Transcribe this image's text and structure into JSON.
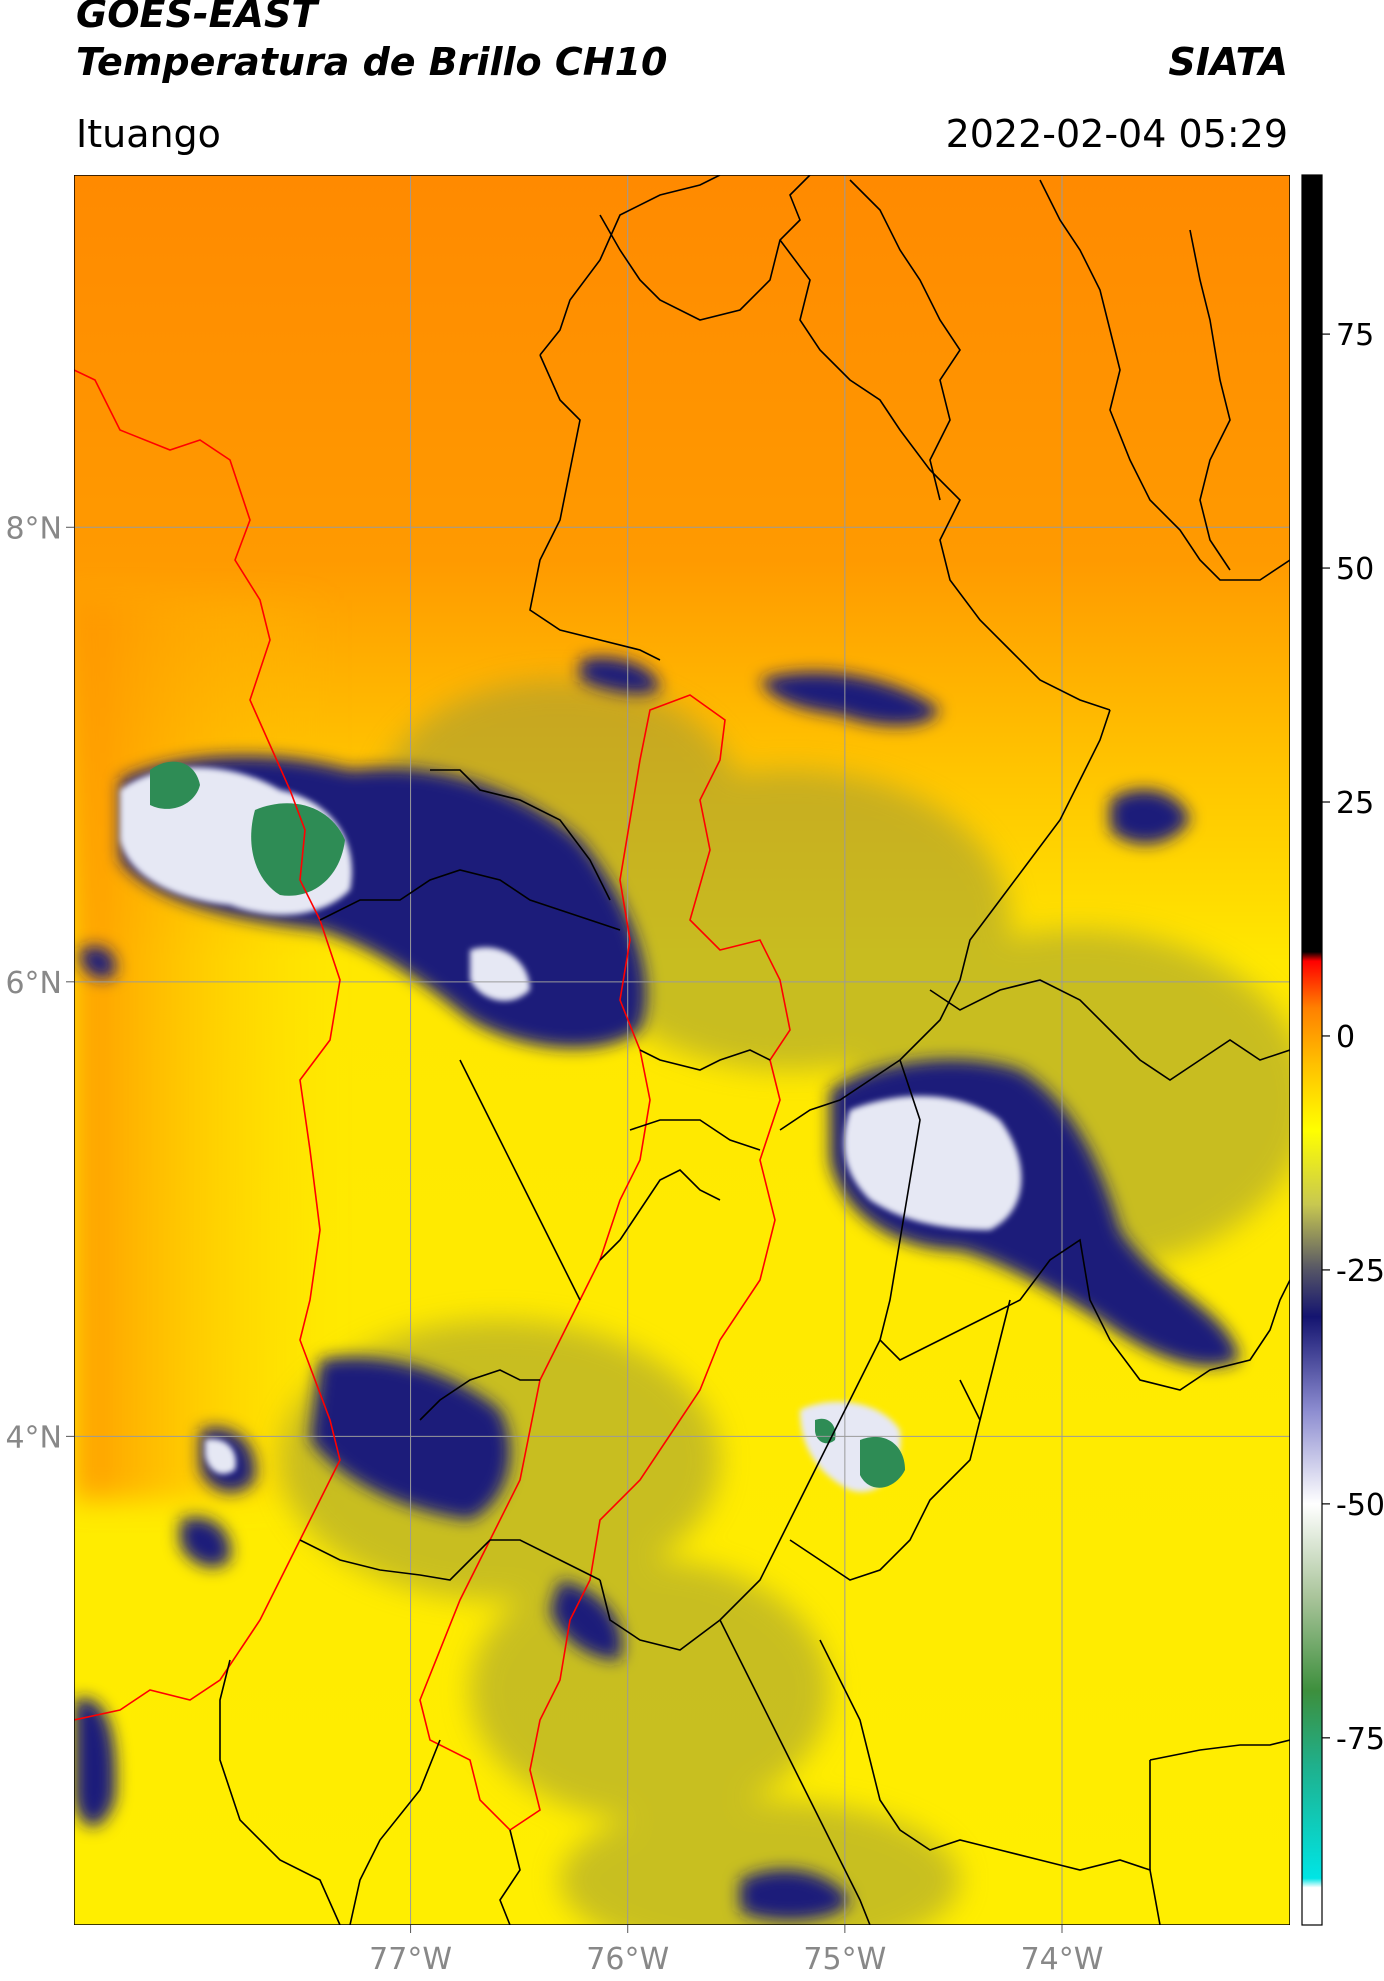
{
  "header": {
    "satellite": "GOES-EAST",
    "product": "Temperatura de Brillo CH10",
    "organization": "SIATA",
    "location": "Ituango",
    "timestamp": "2022-02-04 05:29"
  },
  "map": {
    "lon_range": [
      -78.55,
      -72.95
    ],
    "lat_range": [
      1.85,
      9.55
    ],
    "lon_ticks": [
      {
        "value": -77,
        "label": "77°W"
      },
      {
        "value": -76,
        "label": "76°W"
      },
      {
        "value": -75,
        "label": "75°W"
      },
      {
        "value": -74,
        "label": "74°W"
      }
    ],
    "lat_ticks": [
      {
        "value": 8,
        "label": "8°N"
      },
      {
        "value": 6,
        "label": "6°N"
      },
      {
        "value": 4,
        "label": "4°N"
      }
    ],
    "grid": true
  },
  "colorbar": {
    "range": [
      -95,
      92
    ],
    "ticks": [
      {
        "value": 75,
        "label": "75"
      },
      {
        "value": 50,
        "label": "50"
      },
      {
        "value": 25,
        "label": "25"
      },
      {
        "value": 0,
        "label": "0"
      },
      {
        "value": -25,
        "label": "-25"
      },
      {
        "value": -50,
        "label": "-50"
      },
      {
        "value": -75,
        "label": "-75"
      }
    ],
    "stops": [
      {
        "value": -95,
        "color": "#ffffff"
      },
      {
        "value": -91,
        "color": "#ffffff"
      },
      {
        "value": -90,
        "color": "#00e5e5"
      },
      {
        "value": -78,
        "color": "#1fb08c"
      },
      {
        "value": -70,
        "color": "#3d8f3d"
      },
      {
        "value": -60,
        "color": "#a9c49a"
      },
      {
        "value": -50,
        "color": "#ffffff"
      },
      {
        "value": -40,
        "color": "#8c8cd0"
      },
      {
        "value": -30,
        "color": "#141470"
      },
      {
        "value": -25,
        "color": "#555566"
      },
      {
        "value": -18,
        "color": "#c8c850"
      },
      {
        "value": -10,
        "color": "#ffff00"
      },
      {
        "value": -3,
        "color": "#ffc000"
      },
      {
        "value": 3,
        "color": "#ff8000"
      },
      {
        "value": 8,
        "color": "#ff0000"
      },
      {
        "value": 9,
        "color": "#000000"
      },
      {
        "value": 92,
        "color": "#000000"
      }
    ]
  },
  "colors": {
    "land_warm": "#ff9800",
    "boundary_national": "#000000",
    "boundary_region": "#ff0000",
    "grid": "#9a9a9a"
  }
}
